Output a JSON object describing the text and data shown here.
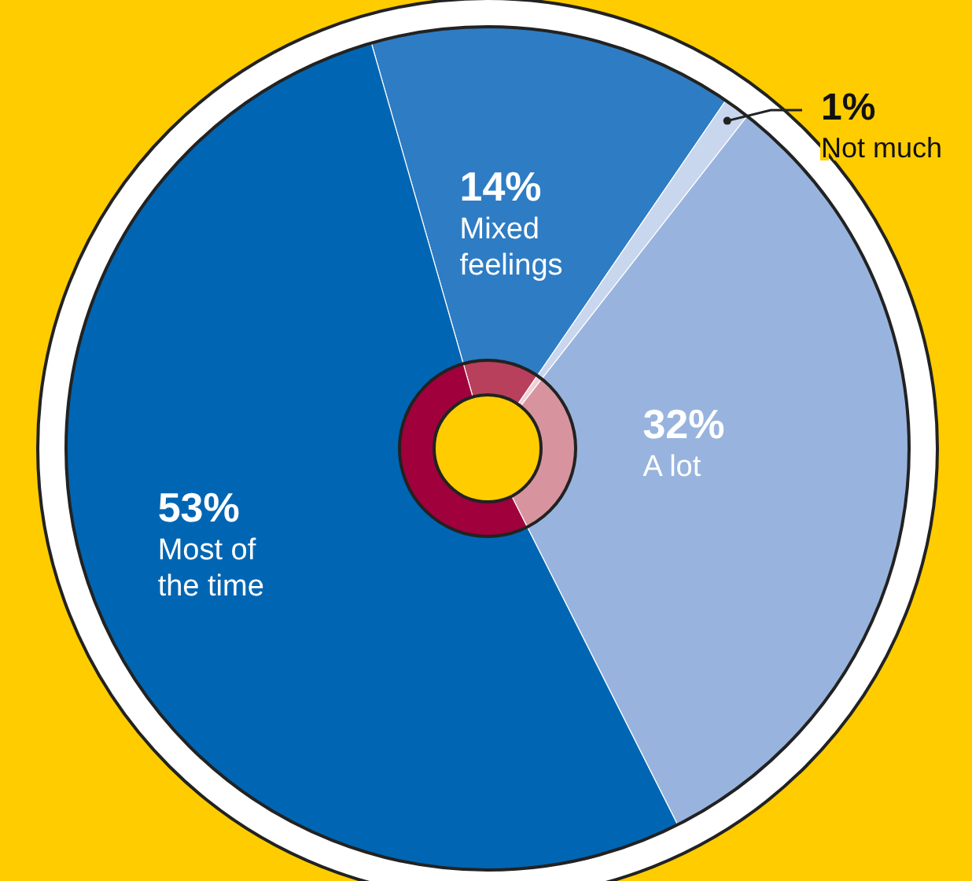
{
  "chart_data": {
    "type": "pie",
    "categories": [
      "Mixed feelings",
      "Not much",
      "A lot",
      "Most of the time"
    ],
    "series": [
      {
        "values": [
          14,
          1,
          32,
          53
        ],
        "colors": [
          "#2e7cc4",
          "#c8d6ee",
          "#98b4de",
          "#0066b3"
        ],
        "value_labels": [
          "14%",
          "1%",
          "32%",
          "53%"
        ]
      },
      {
        "values": [
          14,
          1,
          32,
          53
        ],
        "colors": [
          "#b8405c",
          "#f0d0d8",
          "#d8949e",
          "#a0003c"
        ]
      }
    ]
  }
}
